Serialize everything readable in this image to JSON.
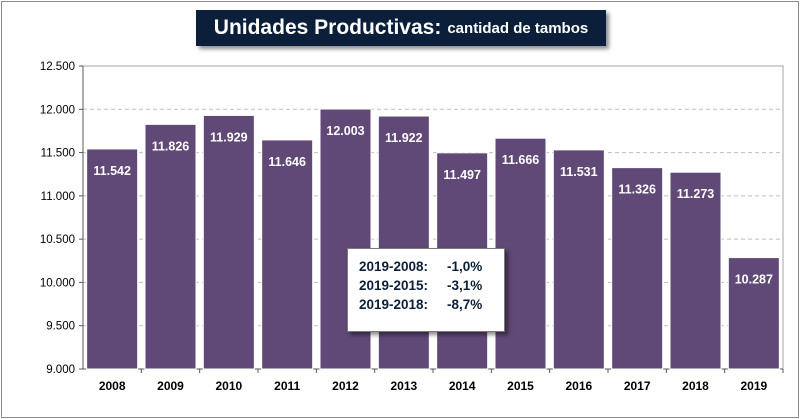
{
  "title": {
    "main": "Unidades Productivas:",
    "sub": "cantidad de tambos"
  },
  "colors": {
    "bar": "#604877",
    "bar_edge": "#ffffff",
    "grid": "#bfbfbf",
    "axis": "#595959",
    "plot_border": "#a6a6a6",
    "text": "#000000",
    "title_bg": "#0b1f3a"
  },
  "chart_data": {
    "type": "bar",
    "title": "Unidades Productivas: cantidad de tambos",
    "xlabel": "",
    "ylabel": "",
    "categories": [
      "2008",
      "2009",
      "2010",
      "2011",
      "2012",
      "2013",
      "2014",
      "2015",
      "2016",
      "2017",
      "2018",
      "2019"
    ],
    "values": [
      11542,
      11826,
      11929,
      11646,
      12003,
      11922,
      11497,
      11666,
      11531,
      11326,
      11273,
      10287
    ],
    "value_labels": [
      "11.542",
      "11.826",
      "11.929",
      "11.646",
      "12.003",
      "11.922",
      "11.497",
      "11.666",
      "11.531",
      "11.326",
      "11.273",
      "10.287"
    ],
    "ylim": [
      9000,
      12500
    ],
    "yticks": [
      9000,
      9500,
      10000,
      10500,
      11000,
      11500,
      12000,
      12500
    ],
    "ytick_labels": [
      "9.000",
      "9.500",
      "10.000",
      "10.500",
      "11.000",
      "11.500",
      "12.000",
      "12.500"
    ],
    "grid": true,
    "legend": "none"
  },
  "stats": [
    {
      "label": "2019-2008:",
      "value": "-1,0%"
    },
    {
      "label": "2019-2015:",
      "value": "-3,1%"
    },
    {
      "label": "2019-2018:",
      "value": "-8,7%"
    }
  ]
}
